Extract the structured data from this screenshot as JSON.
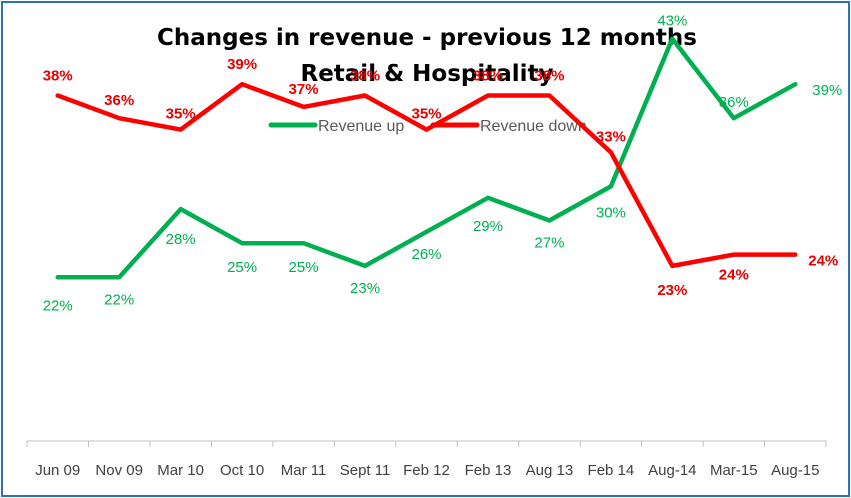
{
  "chart_data": {
    "type": "line",
    "title": "Changes in revenue - previous 12 months",
    "subtitle": "Retail & Hospitality",
    "categories": [
      "Jun 09",
      "Nov 09",
      "Mar 10",
      "Oct 10",
      "Mar 11",
      "Sept 11",
      "Feb 12",
      "Feb 13",
      "Aug 13",
      "Feb 14",
      "Aug-14",
      "Mar-15",
      "Aug-15"
    ],
    "series": [
      {
        "name": "Revenue up",
        "color": "#00b050",
        "values": [
          22,
          22,
          28,
          25,
          25,
          23,
          26,
          29,
          27,
          30,
          43,
          36,
          39
        ],
        "labels": [
          "22%",
          "22%",
          "28%",
          "25%",
          "25%",
          "23%",
          "26%",
          "29%",
          "27%",
          "30%",
          "43%",
          "36%",
          "39%"
        ]
      },
      {
        "name": "Revenue down",
        "color": "#ff0000",
        "values": [
          38,
          36,
          35,
          39,
          37,
          38,
          35,
          38,
          38,
          33,
          23,
          24,
          24
        ],
        "labels": [
          "38%",
          "36%",
          "35%",
          "39%",
          "37%",
          "38%",
          "35%",
          "38%",
          "38%",
          "33%",
          "23%",
          "",
          "24%"
        ]
      }
    ],
    "extra_labels": [
      {
        "series": "Revenue down",
        "index": 11,
        "text": "24%"
      }
    ],
    "legend_position": "top",
    "grid": false
  }
}
